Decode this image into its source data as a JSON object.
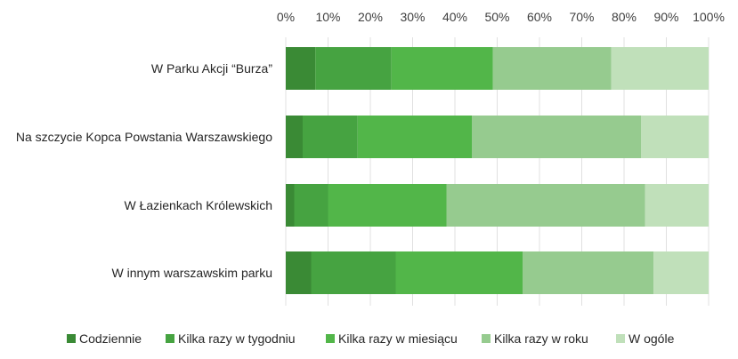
{
  "chart_data": {
    "type": "bar",
    "orientation": "horizontal",
    "stacked": true,
    "normalized": true,
    "categories": [
      "W Parku Akcji “Burza”",
      "Na szczycie Kopca Powstania Warszawskiego",
      "W Łazienkach Królewskich",
      "W innym warszawskim parku"
    ],
    "series": [
      {
        "name": "Codziennie",
        "color": "#3a8a35",
        "values": [
          7,
          4,
          2,
          6
        ]
      },
      {
        "name": "Kilka razy w tygodniu",
        "color": "#46a341",
        "values": [
          18,
          13,
          8,
          20
        ]
      },
      {
        "name": "Kilka razy w miesiącu",
        "color": "#52b649",
        "values": [
          24,
          27,
          28,
          30
        ]
      },
      {
        "name": "Kilka razy w roku",
        "color": "#96cb8f",
        "values": [
          28,
          40,
          47,
          31
        ]
      },
      {
        "name": "W ogóle",
        "color": "#c0e0ba",
        "values": [
          23,
          16,
          15,
          13
        ]
      }
    ],
    "xlim": [
      0,
      100
    ],
    "x_ticks": [
      "0%",
      "10%",
      "20%",
      "30%",
      "40%",
      "50%",
      "60%",
      "70%",
      "80%",
      "90%",
      "100%"
    ],
    "x_tick_values": [
      0,
      10,
      20,
      30,
      40,
      50,
      60,
      70,
      80,
      90,
      100
    ],
    "x_axis_position": "top",
    "grid": true,
    "legend_position": "bottom"
  }
}
